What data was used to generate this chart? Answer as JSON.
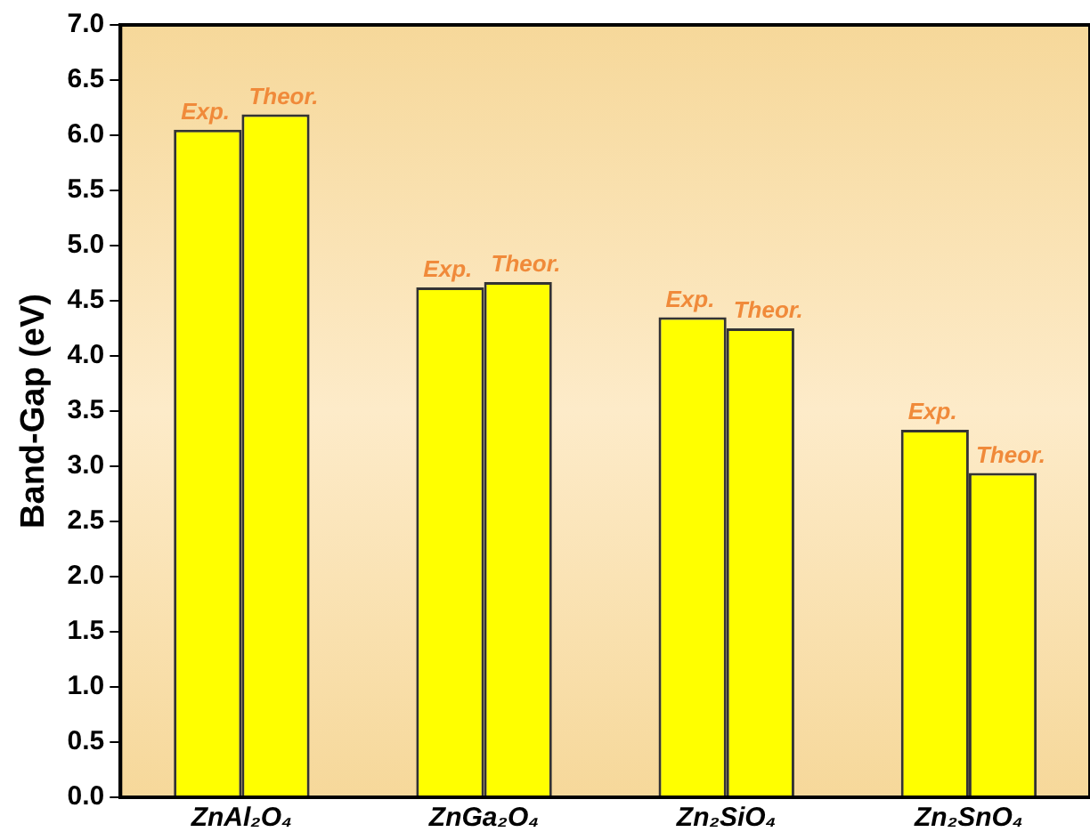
{
  "chart_data": {
    "type": "bar",
    "ylabel": "Band-Gap (eV)",
    "categories": [
      "ZnAl₂O₄",
      "ZnGa₂O₄",
      "Zn₂SiO₄",
      "Zn₂SnO₄"
    ],
    "series": [
      {
        "name": "Exp.",
        "color": "#ffff00",
        "values": [
          6.05,
          4.62,
          4.35,
          3.33
        ]
      },
      {
        "name": "Theor.",
        "color": "#ffff00",
        "values": [
          6.19,
          4.67,
          4.25,
          2.94
        ]
      }
    ],
    "ylim": [
      0,
      7
    ],
    "yticks": [
      {
        "value": 0,
        "label": "0.0"
      },
      {
        "value": 0.5,
        "label": "0.5"
      },
      {
        "value": 1,
        "label": "1.0"
      },
      {
        "value": 1.5,
        "label": "1.5"
      },
      {
        "value": 2,
        "label": "2.0"
      },
      {
        "value": 2.5,
        "label": "2.5"
      },
      {
        "value": 3,
        "label": "3.0"
      },
      {
        "value": 3.5,
        "label": "3.5"
      },
      {
        "value": 4,
        "label": "4.0"
      },
      {
        "value": 4.5,
        "label": "4.5"
      },
      {
        "value": 5,
        "label": "5.0"
      },
      {
        "value": 5.5,
        "label": "5.5"
      },
      {
        "value": 6,
        "label": "6.0"
      },
      {
        "value": 6.5,
        "label": "6.5"
      },
      {
        "value": 7,
        "label": "7.0"
      }
    ],
    "legend": false
  }
}
